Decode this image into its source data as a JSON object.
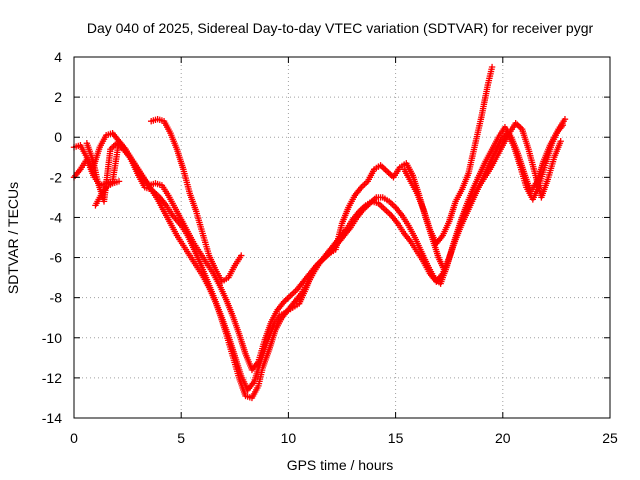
{
  "chart_data": {
    "type": "scatter",
    "title": "Day 040 of 2025, Sidereal Day-to-day VTEC variation (SDTVAR) for receiver pygr",
    "xlabel": "GPS time / hours",
    "ylabel": "SDTVAR / TECUs",
    "xlim": [
      0,
      25
    ],
    "ylim": [
      -14,
      4
    ],
    "x_ticks": [
      0,
      5,
      10,
      15,
      20,
      25
    ],
    "y_ticks": [
      -14,
      -12,
      -10,
      -8,
      -6,
      -4,
      -2,
      0,
      2,
      4
    ],
    "grid": true,
    "marker": "+",
    "series": [
      {
        "color": "#ff0000",
        "x": [
          0.0,
          0.3,
          0.6,
          0.9,
          1.2,
          1.5,
          1.8,
          2.1,
          2.4,
          2.7,
          3.0,
          3.3,
          3.6,
          4.0,
          4.3,
          4.6,
          5.0,
          5.3,
          5.6,
          5.9,
          6.2,
          6.5,
          6.8,
          7.1,
          7.4,
          7.7,
          8.0,
          8.3,
          8.6,
          8.8,
          9.1,
          9.4,
          9.7,
          10.0,
          10.3,
          10.6,
          10.9,
          11.2,
          11.5,
          11.8,
          12.1,
          12.4,
          12.7,
          13.0,
          13.3,
          13.6,
          13.9,
          14.2,
          14.5,
          14.8,
          15.1,
          15.4,
          15.7,
          16.0,
          16.3,
          16.6,
          16.9,
          17.2,
          17.5,
          17.8,
          18.1,
          18.4,
          18.7,
          19.0,
          19.3,
          19.6,
          19.9,
          20.2,
          20.5,
          20.8,
          21.1,
          21.4,
          21.7,
          22.0,
          22.3,
          22.6,
          22.9
        ],
        "y": [
          -0.5,
          -0.4,
          -1.0,
          -1.5,
          -0.5,
          0.1,
          0.2,
          -0.2,
          -0.6,
          -1.2,
          -1.9,
          -2.5,
          -2.6,
          -3.0,
          -3.4,
          -3.9,
          -4.4,
          -4.9,
          -5.6,
          -6.3,
          -7.1,
          -7.9,
          -8.8,
          -9.8,
          -10.9,
          -12.0,
          -12.9,
          -13.0,
          -12.4,
          -11.5,
          -10.6,
          -9.6,
          -9.0,
          -8.6,
          -8.2,
          -7.8,
          -7.3,
          -6.7,
          -6.2,
          -5.8,
          -5.4,
          -5.0,
          -4.6,
          -4.1,
          -3.7,
          -3.4,
          -3.2,
          -3.3,
          -3.6,
          -3.9,
          -4.3,
          -4.8,
          -5.2,
          -5.7,
          -6.2,
          -6.8,
          -7.2,
          -6.8,
          -6.0,
          -5.1,
          -4.3,
          -3.6,
          -2.9,
          -2.2,
          -1.5,
          -0.8,
          -0.2,
          0.2,
          -0.4,
          -1.4,
          -2.5,
          -3.1,
          -2.4,
          -1.3,
          -0.3,
          0.4,
          0.9
        ]
      },
      {
        "color": "#ff0000",
        "x": [
          0.0,
          0.3,
          0.6,
          0.9,
          1.2,
          1.5,
          1.8,
          2.1,
          2.4,
          2.7,
          3.0,
          3.3,
          3.6,
          3.9,
          4.2,
          4.5,
          4.8,
          5.1,
          5.4,
          5.7,
          6.0,
          6.3,
          6.6,
          6.9,
          7.2,
          7.5,
          7.8,
          8.1,
          8.4,
          8.7,
          9.0,
          9.3,
          9.6,
          9.9,
          10.2,
          10.5,
          10.8,
          11.1,
          11.4,
          11.7,
          12.0,
          12.3,
          12.6,
          12.9,
          13.2,
          13.5,
          13.8,
          14.1,
          14.4,
          14.7,
          15.0,
          15.3,
          15.6,
          15.9,
          16.2,
          16.5,
          16.8,
          17.1,
          17.4,
          17.7,
          18.0,
          18.3,
          18.6,
          18.9,
          19.2,
          19.5,
          19.8,
          20.1,
          20.4,
          20.7,
          21.0,
          21.3,
          21.6,
          21.9,
          22.2,
          22.5,
          22.8
        ],
        "y": [
          -2.0,
          -1.6,
          -1.1,
          -1.9,
          -2.4,
          -2.3,
          -2.2,
          -0.2,
          -0.6,
          -1.1,
          -1.6,
          -2.1,
          -2.6,
          -3.1,
          -3.7,
          -4.3,
          -4.9,
          -5.4,
          -5.9,
          -6.4,
          -6.9,
          -7.5,
          -8.2,
          -9.0,
          -9.9,
          -10.9,
          -11.9,
          -12.6,
          -12.2,
          -11.2,
          -10.2,
          -9.4,
          -8.9,
          -8.7,
          -8.5,
          -8.3,
          -7.6,
          -6.8,
          -6.3,
          -6.0,
          -5.7,
          -5.3,
          -4.9,
          -4.5,
          -4.0,
          -3.6,
          -3.3,
          -3.0,
          -3.0,
          -3.2,
          -3.5,
          -3.9,
          -4.4,
          -5.0,
          -5.7,
          -6.4,
          -7.0,
          -7.3,
          -6.4,
          -5.3,
          -4.3,
          -3.4,
          -2.6,
          -1.9,
          -1.2,
          -0.6,
          0.0,
          0.5,
          0.0,
          -0.8,
          -1.8,
          -2.7,
          -2.2,
          -1.2,
          -0.4,
          0.2,
          0.6
        ]
      },
      {
        "color": "#ff0000",
        "x": [
          0.6,
          0.9,
          1.1,
          1.4,
          1.7,
          2.0,
          2.3,
          2.6,
          2.9,
          3.2,
          3.5,
          3.8,
          4.1,
          4.4,
          4.7,
          5.0,
          5.3,
          5.6,
          5.9,
          6.2,
          6.5,
          6.8,
          7.1,
          7.4,
          7.7,
          8.0,
          8.3,
          8.6,
          8.9,
          9.2,
          9.5,
          9.8,
          10.1,
          10.4,
          10.7,
          11.0,
          11.3,
          11.6,
          11.9,
          12.2,
          12.5,
          12.8,
          13.1,
          13.4,
          13.7,
          14.0,
          14.3,
          14.6,
          14.9,
          15.2,
          15.5,
          15.8,
          16.1,
          16.4,
          16.7,
          17.0,
          17.3,
          17.6,
          17.9,
          18.2,
          18.5,
          18.8,
          19.1,
          19.4,
          19.7,
          20.0,
          20.3,
          20.6,
          20.9,
          21.2,
          21.5,
          21.8,
          22.1,
          22.4,
          22.7
        ],
        "y": [
          -0.3,
          -1.2,
          -2.2,
          -3.2,
          -0.6,
          -0.3,
          -0.6,
          -1.0,
          -1.5,
          -2.0,
          -2.4,
          -2.3,
          -2.4,
          -2.9,
          -3.5,
          -4.1,
          -4.7,
          -5.3,
          -5.8,
          -6.3,
          -6.8,
          -7.4,
          -8.1,
          -8.9,
          -9.8,
          -10.8,
          -11.6,
          -11.2,
          -10.1,
          -9.2,
          -8.6,
          -8.2,
          -7.9,
          -7.6,
          -7.2,
          -6.8,
          -6.4,
          -6.1,
          -5.8,
          -5.6,
          -4.3,
          -3.5,
          -2.9,
          -2.5,
          -2.2,
          -1.6,
          -1.4,
          -1.7,
          -2.0,
          -1.5,
          -1.3,
          -1.9,
          -2.9,
          -4.0,
          -5.0,
          -6.0,
          -6.7,
          -5.7,
          -4.7,
          -3.8,
          -3.1,
          -2.6,
          -2.1,
          -1.6,
          -1.0,
          -0.4,
          0.2,
          0.7,
          0.4,
          -0.6,
          -1.8,
          -3.0,
          -2.1,
          -1.0,
          -0.2
        ]
      },
      {
        "color": "#ff0000",
        "x": [
          3.6,
          3.9,
          4.2,
          4.5,
          4.8,
          5.1,
          5.4,
          5.7,
          6.0,
          6.3,
          6.6,
          6.9,
          7.2,
          7.5,
          7.8
        ],
        "y": [
          0.8,
          0.9,
          0.8,
          0.2,
          -0.6,
          -1.6,
          -2.8,
          -3.7,
          -4.8,
          -5.9,
          -6.6,
          -7.2,
          -7.0,
          -6.4,
          -5.9
        ]
      },
      {
        "color": "#ff0000",
        "x": [
          15.4,
          15.7,
          16.0,
          16.3,
          16.6,
          16.9,
          17.2,
          17.5,
          17.8,
          18.1,
          18.4,
          18.7,
          19.0,
          19.3,
          19.5
        ],
        "y": [
          -1.6,
          -2.2,
          -2.8,
          -3.6,
          -4.6,
          -5.3,
          -4.9,
          -4.2,
          -3.2,
          -2.6,
          -1.8,
          -0.4,
          1.0,
          2.6,
          3.5
        ]
      },
      {
        "color": "#ff0000",
        "x": [
          1.0,
          1.3,
          1.5,
          1.8,
          2.1
        ],
        "y": [
          -3.4,
          -2.8,
          -2.5,
          -2.3,
          -2.2
        ]
      }
    ]
  }
}
